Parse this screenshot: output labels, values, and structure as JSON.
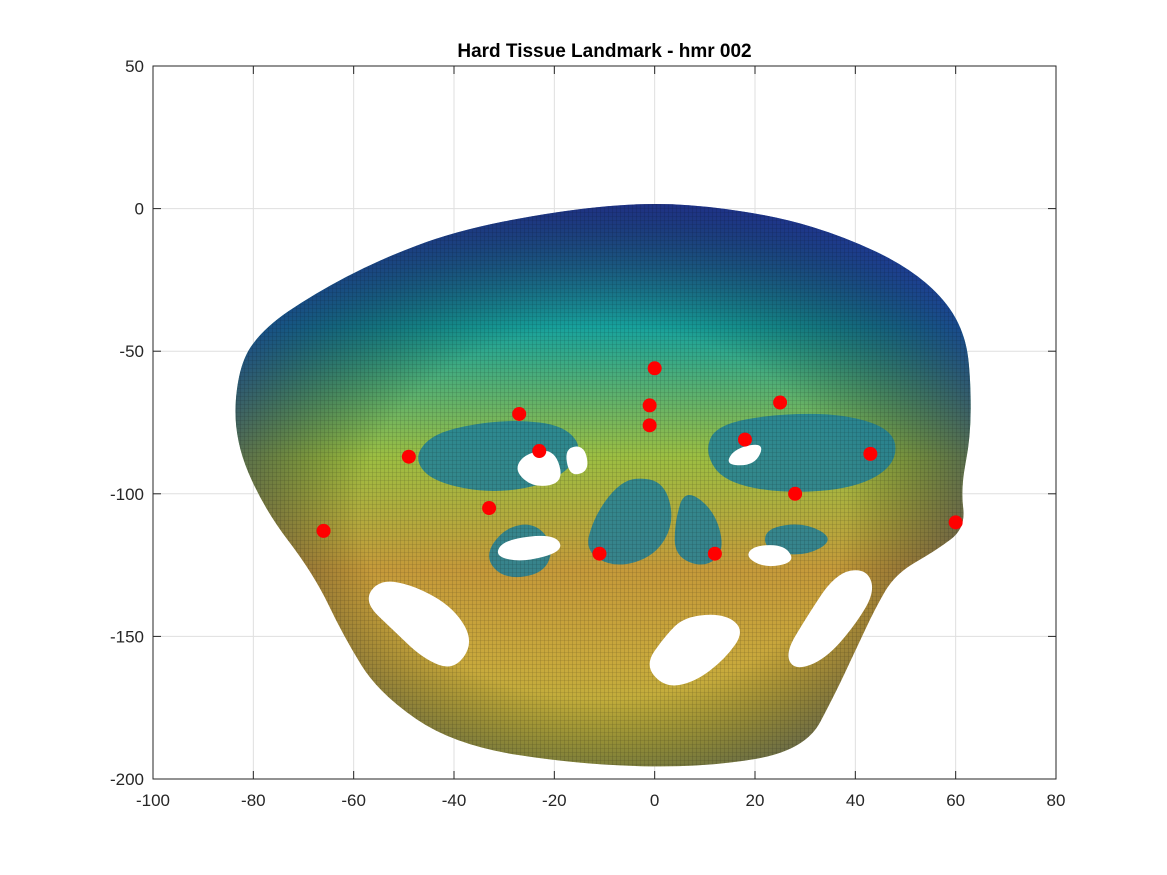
{
  "chart_data": {
    "type": "scatter",
    "title": "Hard Tissue Landmark - hmr 002",
    "xlabel": "",
    "ylabel": "",
    "xlim": [
      -100,
      80
    ],
    "ylim": [
      -200,
      50
    ],
    "xticks": [
      -100,
      -80,
      -60,
      -40,
      -20,
      0,
      20,
      40,
      60,
      80
    ],
    "yticks": [
      -200,
      -150,
      -100,
      -50,
      0,
      50
    ],
    "xtick_labels": [
      "-100",
      "-80",
      "-60",
      "-40",
      "-20",
      "0",
      "20",
      "40",
      "60",
      "80"
    ],
    "ytick_labels": [
      "-200",
      "-150",
      "-100",
      "-50",
      "0",
      "50"
    ],
    "grid": true,
    "box": true,
    "colormap": "parula",
    "background_surface": {
      "description_visible": "3D skull surface mesh colored by depth",
      "outline": [
        [
          -3,
          2
        ],
        [
          10,
          1
        ],
        [
          25,
          -3
        ],
        [
          38,
          -10
        ],
        [
          50,
          -20
        ],
        [
          58,
          -32
        ],
        [
          62,
          -45
        ],
        [
          63,
          -60
        ],
        [
          63,
          -80
        ],
        [
          61,
          -98
        ],
        [
          62,
          -112
        ],
        [
          56,
          -120
        ],
        [
          48,
          -128
        ],
        [
          44,
          -140
        ],
        [
          40,
          -155
        ],
        [
          36,
          -170
        ],
        [
          30,
          -190
        ],
        [
          10,
          -196
        ],
        [
          -15,
          -195
        ],
        [
          -40,
          -188
        ],
        [
          -55,
          -170
        ],
        [
          -62,
          -150
        ],
        [
          -68,
          -128
        ],
        [
          -78,
          -105
        ],
        [
          -84,
          -80
        ],
        [
          -83,
          -55
        ],
        [
          -78,
          -42
        ],
        [
          -68,
          -30
        ],
        [
          -55,
          -18
        ],
        [
          -40,
          -8
        ],
        [
          -20,
          -1
        ]
      ],
      "dark_regions": [
        [
          [
            -45,
            -80
          ],
          [
            -38,
            -76
          ],
          [
            -28,
            -74
          ],
          [
            -18,
            -76
          ],
          [
            -14,
            -85
          ],
          [
            -20,
            -96
          ],
          [
            -32,
            -100
          ],
          [
            -44,
            -96
          ],
          [
            -48,
            -88
          ]
        ],
        [
          [
            12,
            -76
          ],
          [
            24,
            -72
          ],
          [
            38,
            -72
          ],
          [
            48,
            -78
          ],
          [
            48,
            -90
          ],
          [
            40,
            -98
          ],
          [
            26,
            -100
          ],
          [
            14,
            -96
          ],
          [
            10,
            -86
          ]
        ],
        [
          [
            -8,
            -98
          ],
          [
            -4,
            -94
          ],
          [
            2,
            -96
          ],
          [
            4,
            -110
          ],
          [
            0,
            -122
          ],
          [
            -8,
            -126
          ],
          [
            -14,
            -120
          ],
          [
            -12,
            -108
          ]
        ],
        [
          [
            6,
            -98
          ],
          [
            12,
            -106
          ],
          [
            14,
            -120
          ],
          [
            10,
            -126
          ],
          [
            4,
            -122
          ],
          [
            4,
            -110
          ]
        ],
        [
          [
            -30,
            -112
          ],
          [
            -24,
            -110
          ],
          [
            -20,
            -118
          ],
          [
            -22,
            -128
          ],
          [
            -30,
            -130
          ],
          [
            -34,
            -122
          ]
        ],
        [
          [
            22,
            -112
          ],
          [
            30,
            -110
          ],
          [
            36,
            -116
          ],
          [
            30,
            -122
          ],
          [
            22,
            -120
          ]
        ]
      ],
      "holes": [
        [
          [
            -55,
            -130
          ],
          [
            -48,
            -132
          ],
          [
            -40,
            -140
          ],
          [
            -36,
            -152
          ],
          [
            -40,
            -162
          ],
          [
            -46,
            -158
          ],
          [
            -52,
            -148
          ],
          [
            -58,
            -138
          ]
        ],
        [
          [
            36,
            -128
          ],
          [
            42,
            -126
          ],
          [
            44,
            -134
          ],
          [
            40,
            -146
          ],
          [
            34,
            -158
          ],
          [
            28,
            -162
          ],
          [
            26,
            -156
          ],
          [
            30,
            -144
          ]
        ],
        [
          [
            6,
            -143
          ],
          [
            14,
            -142
          ],
          [
            18,
            -148
          ],
          [
            14,
            -158
          ],
          [
            8,
            -166
          ],
          [
            2,
            -168
          ],
          [
            -2,
            -160
          ],
          [
            2,
            -150
          ]
        ],
        [
          [
            -30,
            -116
          ],
          [
            -20,
            -114
          ],
          [
            -18,
            -120
          ],
          [
            -26,
            -124
          ],
          [
            -32,
            -122
          ]
        ],
        [
          [
            20,
            -118
          ],
          [
            26,
            -118
          ],
          [
            28,
            -124
          ],
          [
            22,
            -126
          ],
          [
            18,
            -122
          ]
        ],
        [
          [
            -26,
            -86
          ],
          [
            -20,
            -84
          ],
          [
            -18,
            -96
          ],
          [
            -24,
            -98
          ],
          [
            -28,
            -92
          ]
        ],
        [
          [
            16,
            -84
          ],
          [
            22,
            -82
          ],
          [
            20,
            -90
          ],
          [
            14,
            -90
          ]
        ],
        [
          [
            -18,
            -84
          ],
          [
            -14,
            -83
          ],
          [
            -13,
            -92
          ],
          [
            -17,
            -94
          ]
        ]
      ]
    },
    "series": [
      {
        "marker": "circle",
        "color": "#ff0000",
        "points": [
          {
            "x": 0,
            "y": -56
          },
          {
            "x": -1,
            "y": -69
          },
          {
            "x": -1,
            "y": -76
          },
          {
            "x": -27,
            "y": -72
          },
          {
            "x": 25,
            "y": -68
          },
          {
            "x": -23,
            "y": -85
          },
          {
            "x": 18,
            "y": -81
          },
          {
            "x": -49,
            "y": -87
          },
          {
            "x": 43,
            "y": -86
          },
          {
            "x": -33,
            "y": -105
          },
          {
            "x": 28,
            "y": -100
          },
          {
            "x": -66,
            "y": -113
          },
          {
            "x": 60,
            "y": -110
          },
          {
            "x": -11,
            "y": -121
          },
          {
            "x": 12,
            "y": -121
          }
        ]
      }
    ]
  }
}
